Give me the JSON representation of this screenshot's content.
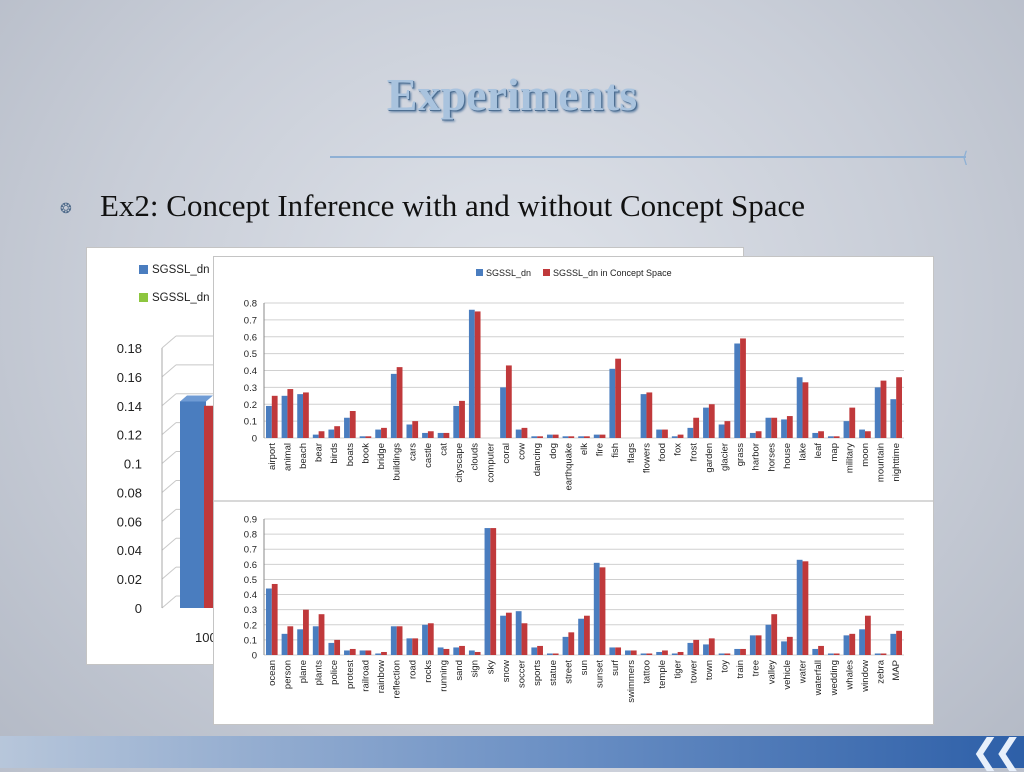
{
  "slide": {
    "title": "Experiments",
    "bullet": "Ex2: Concept Inference with and without Concept Space",
    "colors": {
      "series1": "#4a7dbf",
      "series2": "#c0393b",
      "bullet_icon": "#4e6a8a",
      "back_series2": "#8dc63f"
    }
  },
  "back_chart": {
    "legend": [
      "SGSSL_dn",
      "SGSSL_dn"
    ],
    "category_label": "100"
  },
  "chart_data": [
    {
      "type": "bar",
      "style": "3d",
      "partially_hidden": true,
      "ylim": [
        0,
        0.18
      ],
      "yticks": [
        "0",
        "0.02",
        "0.04",
        "0.06",
        "0.08",
        "0.1",
        "0.12",
        "0.14",
        "0.16",
        "0.18"
      ],
      "categories": [
        "100"
      ],
      "series": [
        {
          "name": "SGSSL_dn",
          "values": [
            0.143
          ]
        },
        {
          "name": "SGSSL_dn",
          "values": [
            0.14
          ]
        }
      ],
      "grid": true
    },
    {
      "type": "bar",
      "ylim": [
        0,
        0.8
      ],
      "yticks": [
        "0",
        "0.1",
        "0.2",
        "0.3",
        "0.4",
        "0.5",
        "0.6",
        "0.7",
        "0.8"
      ],
      "legend_position": "top",
      "grid": true,
      "categories": [
        "airport",
        "animal",
        "beach",
        "bear",
        "birds",
        "boats",
        "book",
        "bridge",
        "buildings",
        "cars",
        "castle",
        "cat",
        "cityscape",
        "clouds",
        "computer",
        "coral",
        "cow",
        "dancing",
        "dog",
        "earthquake",
        "elk",
        "fire",
        "fish",
        "flags",
        "flowers",
        "food",
        "fox",
        "frost",
        "garden",
        "glacier",
        "grass",
        "harbor",
        "horses",
        "house",
        "lake",
        "leaf",
        "map",
        "military",
        "moon",
        "mountain",
        "nighttime"
      ],
      "series": [
        {
          "name": "SGSSL_dn",
          "values": [
            0.19,
            0.25,
            0.26,
            0.02,
            0.05,
            0.12,
            0.01,
            0.05,
            0.38,
            0.08,
            0.03,
            0.03,
            0.19,
            0.76,
            0.0,
            0.3,
            0.05,
            0.01,
            0.02,
            0.01,
            0.01,
            0.02,
            0.41,
            0.0,
            0.26,
            0.05,
            0.01,
            0.06,
            0.18,
            0.08,
            0.56,
            0.03,
            0.12,
            0.11,
            0.36,
            0.03,
            0.01,
            0.1,
            0.05,
            0.3,
            0.23
          ]
        },
        {
          "name": "SGSSL_dn in Concept Space",
          "values": [
            0.25,
            0.29,
            0.27,
            0.04,
            0.07,
            0.16,
            0.01,
            0.06,
            0.42,
            0.1,
            0.04,
            0.03,
            0.22,
            0.75,
            0.0,
            0.43,
            0.06,
            0.01,
            0.02,
            0.01,
            0.01,
            0.02,
            0.47,
            0.0,
            0.27,
            0.05,
            0.02,
            0.12,
            0.2,
            0.1,
            0.59,
            0.04,
            0.12,
            0.13,
            0.33,
            0.04,
            0.01,
            0.18,
            0.04,
            0.34,
            0.36
          ]
        }
      ]
    },
    {
      "type": "bar",
      "ylim": [
        0,
        0.9
      ],
      "yticks": [
        "0",
        "0.1",
        "0.2",
        "0.3",
        "0.4",
        "0.5",
        "0.6",
        "0.7",
        "0.8",
        "0.9"
      ],
      "grid": true,
      "categories": [
        "ocean",
        "person",
        "plane",
        "plants",
        "police",
        "protest",
        "railroad",
        "rainbow",
        "reflection",
        "road",
        "rocks",
        "running",
        "sand",
        "sign",
        "sky",
        "snow",
        "soccer",
        "sports",
        "statue",
        "street",
        "sun",
        "sunset",
        "surf",
        "swimmers",
        "tattoo",
        "temple",
        "tiger",
        "tower",
        "town",
        "toy",
        "train",
        "tree",
        "valley",
        "vehicle",
        "water",
        "waterfall",
        "wedding",
        "whales",
        "window",
        "zebra",
        "MAP"
      ],
      "series": [
        {
          "name": "SGSSL_dn",
          "values": [
            0.44,
            0.14,
            0.17,
            0.19,
            0.08,
            0.03,
            0.03,
            0.01,
            0.19,
            0.11,
            0.2,
            0.05,
            0.05,
            0.03,
            0.84,
            0.26,
            0.29,
            0.05,
            0.01,
            0.12,
            0.24,
            0.61,
            0.05,
            0.03,
            0.01,
            0.02,
            0.01,
            0.08,
            0.07,
            0.01,
            0.04,
            0.13,
            0.2,
            0.09,
            0.63,
            0.04,
            0.01,
            0.13,
            0.17,
            0.01,
            0.14
          ]
        },
        {
          "name": "SGSSL_dn in Concept Space",
          "values": [
            0.47,
            0.19,
            0.3,
            0.27,
            0.1,
            0.04,
            0.03,
            0.02,
            0.19,
            0.11,
            0.21,
            0.04,
            0.06,
            0.02,
            0.84,
            0.28,
            0.21,
            0.06,
            0.01,
            0.15,
            0.26,
            0.58,
            0.05,
            0.03,
            0.01,
            0.03,
            0.02,
            0.1,
            0.11,
            0.01,
            0.04,
            0.13,
            0.27,
            0.12,
            0.62,
            0.06,
            0.01,
            0.14,
            0.26,
            0.01,
            0.16
          ]
        }
      ]
    }
  ]
}
